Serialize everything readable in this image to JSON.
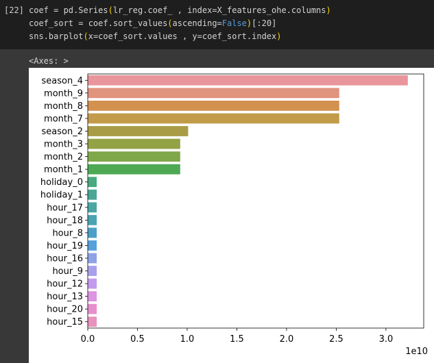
{
  "cell": {
    "prompt": "[22]",
    "code_lines": [
      [
        {
          "t": "coef = pd.Series"
        },
        {
          "t": "(",
          "c": "br"
        },
        {
          "t": "lr_reg.coef_ , index=X_features_ohe.columns"
        },
        {
          "t": ")",
          "c": "br"
        }
      ],
      [
        {
          "t": "coef_sort = coef.sort_values"
        },
        {
          "t": "(",
          "c": "br"
        },
        {
          "t": "ascending="
        },
        {
          "t": "False",
          "c": "kw"
        },
        {
          "t": ")",
          "c": "br"
        },
        {
          "t": "["
        },
        {
          "t": ":20"
        },
        {
          "t": "]"
        }
      ],
      [
        {
          "t": "sns.barplot"
        },
        {
          "t": "(",
          "c": "br"
        },
        {
          "t": "x=coef_sort.values , y=coef_sort.index"
        },
        {
          "t": ")",
          "c": "br"
        }
      ]
    ],
    "output_text": "<Axes: >"
  },
  "chart_data": {
    "type": "bar",
    "orientation": "horizontal",
    "categories": [
      "season_4",
      "month_9",
      "month_8",
      "month_7",
      "season_2",
      "month_3",
      "month_2",
      "month_1",
      "holiday_0",
      "holiday_1",
      "hour_17",
      "hour_18",
      "hour_8",
      "hour_19",
      "hour_16",
      "hour_9",
      "hour_12",
      "hour_13",
      "hour_20",
      "hour_15"
    ],
    "values": [
      3.22,
      2.53,
      2.53,
      2.53,
      1.01,
      0.93,
      0.93,
      0.93,
      0.09,
      0.09,
      0.09,
      0.09,
      0.09,
      0.09,
      0.09,
      0.09,
      0.09,
      0.09,
      0.09,
      0.09
    ],
    "colors": [
      "#e8969b",
      "#e0937d",
      "#d39150",
      "#c29b4a",
      "#a89d46",
      "#93a245",
      "#7fa84a",
      "#4ea955",
      "#4aa97e",
      "#4aa795",
      "#4aa6a3",
      "#4aa3b1",
      "#4aa0c8",
      "#56a0dc",
      "#8fa2e6",
      "#a9a0ec",
      "#c49aee",
      "#dd94e2",
      "#e68fcc",
      "#e891bd"
    ],
    "xticks": [
      "0.0",
      "0.5",
      "1.0",
      "1.5",
      "2.0",
      "2.5",
      "3.0"
    ],
    "xtick_values": [
      0,
      0.5,
      1.0,
      1.5,
      2.0,
      2.5,
      3.0
    ],
    "xlim": [
      0,
      3.38
    ],
    "offset_text": "1e10",
    "title": "",
    "xlabel": "",
    "ylabel": ""
  }
}
